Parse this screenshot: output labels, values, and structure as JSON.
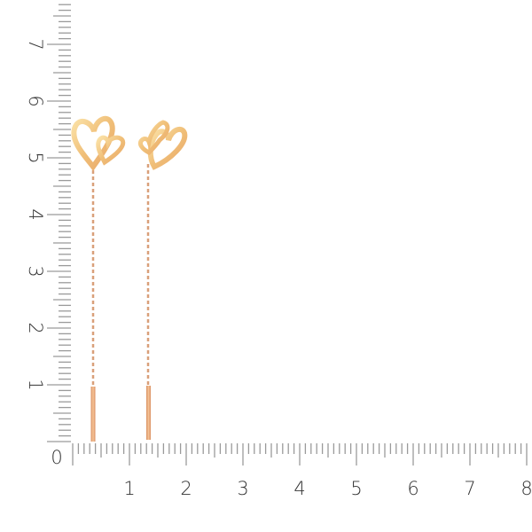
{
  "ruler": {
    "horizontal_labels": [
      "0",
      "1",
      "2",
      "3",
      "4",
      "5",
      "6",
      "7",
      "8"
    ],
    "vertical_labels": [
      "1",
      "2",
      "3",
      "4",
      "5",
      "6",
      "7"
    ],
    "tick_color": "#9a9a9a",
    "label_color": "#333333"
  },
  "product": {
    "description_icon": "heart-threader-earrings",
    "metal_color": "#e8a977",
    "heart_color": "#f3c98a"
  }
}
